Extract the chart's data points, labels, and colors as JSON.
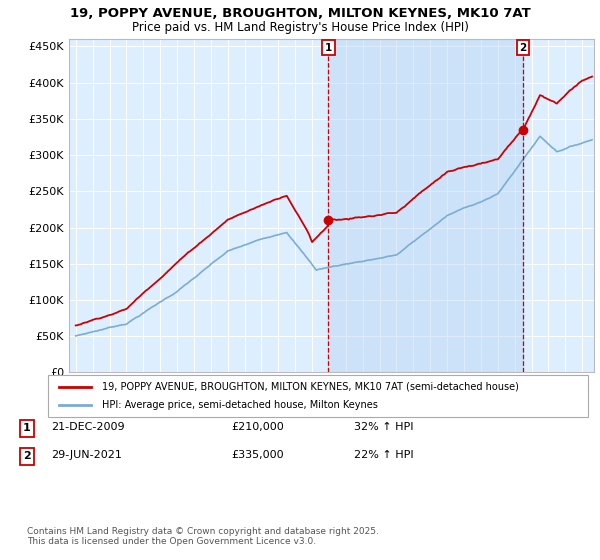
{
  "title_line1": "19, POPPY AVENUE, BROUGHTON, MILTON KEYNES, MK10 7AT",
  "title_line2": "Price paid vs. HM Land Registry's House Price Index (HPI)",
  "legend_entry1": "19, POPPY AVENUE, BROUGHTON, MILTON KEYNES, MK10 7AT (semi-detached house)",
  "legend_entry2": "HPI: Average price, semi-detached house, Milton Keynes",
  "annotation1_label": "1",
  "annotation1_date": "21-DEC-2009",
  "annotation1_price": "£210,000",
  "annotation1_hpi": "32% ↑ HPI",
  "annotation2_label": "2",
  "annotation2_date": "29-JUN-2021",
  "annotation2_price": "£335,000",
  "annotation2_hpi": "22% ↑ HPI",
  "footer": "Contains HM Land Registry data © Crown copyright and database right 2025.\nThis data is licensed under the Open Government Licence v3.0.",
  "red_color": "#cc0000",
  "blue_color": "#7aadd4",
  "shade_color": "#daeaf7",
  "annotation_line_color": "#cc0000",
  "background_color": "#ffffff",
  "plot_bg_color": "#ddeeff",
  "grid_color": "#ffffff",
  "ylim": [
    0,
    460000
  ],
  "yticks": [
    0,
    50000,
    100000,
    150000,
    200000,
    250000,
    300000,
    350000,
    400000,
    450000
  ],
  "ytick_labels": [
    "£0",
    "£50K",
    "£100K",
    "£150K",
    "£200K",
    "£250K",
    "£300K",
    "£350K",
    "£400K",
    "£450K"
  ],
  "sale1_year": 2009.97,
  "sale1_value": 210000,
  "sale2_year": 2021.49,
  "sale2_value": 335000,
  "xlim_left": 1994.6,
  "xlim_right": 2025.7
}
